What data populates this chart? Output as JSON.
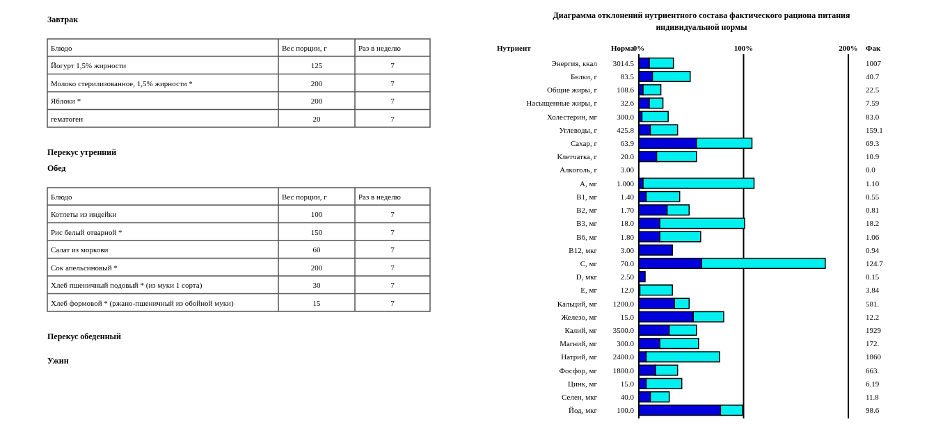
{
  "chart_data": [
    {
      "type": "other",
      "title": "Завтрак",
      "xlabel": "Блюдо",
      "categories": [
        "Йогурт 1,5% жирности",
        "Молоко стерилизованное, 1,5% жирности *",
        "Яблоки *",
        "гематоген"
      ],
      "series": [
        {
          "name": "Вес порции, г",
          "values": [
            125,
            200,
            200,
            20
          ]
        },
        {
          "name": "Раз в неделю",
          "values": [
            7,
            7,
            7,
            7
          ]
        }
      ],
      "data_labels": true,
      "annotations": [
        "Перекус утренний"
      ]
    },
    {
      "type": "other",
      "title": "Обед",
      "xlabel": "Блюдо",
      "categories": [
        "Котлеты из индейки",
        "Рис белый отварной *",
        "Салат из моркови",
        "Сок апельсиновый *",
        "Хлеб пшеничный подовый * (из муки 1 сорта)",
        "Хлеб формовой * (ржано-пшеничный из обойной муки)"
      ],
      "series": [
        {
          "name": "Вес порции, г",
          "values": [
            100,
            150,
            60,
            200,
            30,
            15
          ]
        },
        {
          "name": "Раз в неделю",
          "values": [
            7,
            7,
            7,
            7,
            7,
            7
          ]
        }
      ],
      "data_labels": true,
      "annotations": [
        "Перекус обеденный",
        "Ужин"
      ]
    },
    {
      "type": "bar",
      "orientation": "horizontal",
      "stacked": true,
      "grid": "x",
      "title": "Диаграмма отклонений нутриентного состава фактического рациона питания индивидуальной нормы",
      "ylabel": "Нутриент",
      "categories": [
        "Энергия, ккал",
        "Белки, г",
        "Общие жиры, г",
        "Насыщенные жиры, г",
        "Холестерин, мг",
        "Углеводы, г",
        "Сахар, г",
        "Клетчатка, г",
        "Алкоголь, г",
        "A, мг",
        "B1, мг",
        "B2, мг",
        "B3, мг",
        "B6, мг",
        "B12, мкг",
        "C, мг",
        "D, мкг",
        "E, мг",
        "Кальций, мг",
        "Железо, мг",
        "Калий, мг",
        "Магний, мг",
        "Натрий, мг",
        "Фосфор, мг",
        "Цинк, мг",
        "Селен, мкг",
        "Йод, мкг"
      ],
      "series": [
        {
          "color": "#0000dd",
          "values": [
            10,
            13,
            4,
            10,
            3,
            11,
            55,
            17,
            0,
            4,
            7,
            27,
            20,
            20,
            32,
            60,
            6,
            1,
            34,
            52,
            29,
            20,
            7,
            16,
            7,
            11,
            78
          ]
        },
        {
          "color": "#00f0f0",
          "values": [
            23,
            36,
            17,
            13,
            25,
            26,
            53,
            38,
            0,
            106,
            32,
            21,
            81,
            39,
            0,
            118,
            0,
            31,
            14,
            29,
            26,
            37,
            70,
            21,
            34,
            18,
            21
          ]
        }
      ],
      "xlim": [
        0,
        200
      ],
      "xticks": [
        {
          "value": 0,
          "label": "0%"
        },
        {
          "value": 100,
          "label": "100%"
        },
        {
          "value": 200,
          "label": "200%"
        }
      ],
      "annotations": [
        "Норма",
        "Фак",
        "3014.5",
        "83.5",
        "108.6",
        "32.6",
        "300.0",
        "425.8",
        "63.9",
        "20.0",
        "3.00",
        "1.000",
        "1.40",
        "1.70",
        "18.0",
        "1.80",
        "3.00",
        "70.0",
        "2.50",
        "12.0",
        "1200.0",
        "15.0",
        "3500.0",
        "300.0",
        "2400.0",
        "1800.0",
        "15.0",
        "40.0",
        "100.0",
        "1007",
        "40.7",
        "22.5",
        "7.59",
        "83.0",
        "159.1",
        "69.3",
        "10.9",
        "0.0",
        "1.10",
        "0.55",
        "0.81",
        "18.2",
        "1.06",
        "0.94",
        "124.7",
        "0.15",
        "3.84",
        "581.",
        "12.2",
        "1929",
        "172.",
        "1860",
        "663.",
        "6.19",
        "11.8",
        "98.6"
      ]
    }
  ]
}
